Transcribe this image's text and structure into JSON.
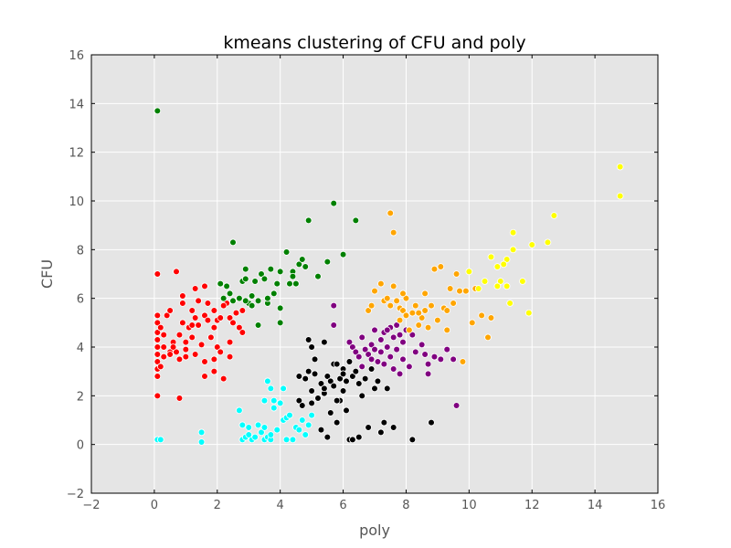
{
  "chart_data": {
    "type": "scatter",
    "title": "kmeans clustering of CFU and poly",
    "xlabel": "poly",
    "ylabel": "CFU",
    "xlim": [
      -2,
      16
    ],
    "ylim": [
      -2,
      16
    ],
    "xticks": [
      -2,
      0,
      2,
      4,
      6,
      8,
      10,
      12,
      14,
      16
    ],
    "yticks": [
      -2,
      0,
      2,
      4,
      6,
      8,
      10,
      12,
      14,
      16
    ],
    "grid": true,
    "background_color": "#e5e5e5",
    "point_edge_color": "#ffffff",
    "series": [
      {
        "color": "#ff0000",
        "points": [
          [
            0.1,
            7.0
          ],
          [
            0.7,
            7.1
          ],
          [
            0.1,
            5.3
          ],
          [
            0.1,
            5.0
          ],
          [
            0.1,
            4.6
          ],
          [
            0.1,
            4.3
          ],
          [
            0.1,
            4.0
          ],
          [
            0.1,
            3.7
          ],
          [
            0.1,
            3.4
          ],
          [
            0.1,
            3.1
          ],
          [
            0.1,
            2.8
          ],
          [
            0.1,
            2.0
          ],
          [
            0.2,
            4.8
          ],
          [
            0.3,
            4.5
          ],
          [
            0.3,
            4.0
          ],
          [
            0.3,
            3.6
          ],
          [
            0.2,
            3.2
          ],
          [
            0.4,
            5.3
          ],
          [
            0.5,
            3.8
          ],
          [
            0.6,
            4.2
          ],
          [
            0.5,
            3.7
          ],
          [
            0.7,
            3.8
          ],
          [
            0.8,
            4.5
          ],
          [
            0.8,
            3.5
          ],
          [
            0.9,
            5.8
          ],
          [
            0.9,
            6.1
          ],
          [
            0.9,
            5.0
          ],
          [
            1.0,
            4.2
          ],
          [
            1.0,
            3.9
          ],
          [
            0.8,
            1.9
          ],
          [
            1.1,
            4.8
          ],
          [
            1.2,
            5.5
          ],
          [
            1.2,
            4.4
          ],
          [
            1.3,
            6.4
          ],
          [
            1.3,
            5.2
          ],
          [
            1.3,
            3.7
          ],
          [
            1.4,
            5.9
          ],
          [
            1.4,
            4.9
          ],
          [
            1.5,
            4.1
          ],
          [
            1.6,
            6.5
          ],
          [
            1.6,
            5.3
          ],
          [
            1.6,
            3.4
          ],
          [
            1.6,
            2.8
          ],
          [
            1.7,
            5.8
          ],
          [
            1.7,
            5.1
          ],
          [
            1.8,
            4.4
          ],
          [
            1.9,
            5.5
          ],
          [
            1.9,
            4.8
          ],
          [
            1.9,
            3.5
          ],
          [
            1.9,
            3.0
          ],
          [
            2.0,
            5.1
          ],
          [
            2.0,
            4.0
          ],
          [
            2.1,
            5.2
          ],
          [
            2.1,
            3.8
          ],
          [
            2.2,
            2.7
          ],
          [
            2.3,
            5.8
          ],
          [
            2.4,
            5.2
          ],
          [
            2.4,
            4.2
          ],
          [
            2.4,
            3.6
          ],
          [
            2.5,
            5.0
          ],
          [
            2.6,
            5.4
          ],
          [
            2.7,
            4.8
          ],
          [
            2.8,
            5.5
          ],
          [
            2.8,
            4.6
          ],
          [
            1.2,
            4.9
          ],
          [
            0.5,
            5.5
          ],
          [
            0.6,
            4.0
          ],
          [
            1.0,
            3.6
          ],
          [
            2.2,
            5.7
          ]
        ]
      },
      {
        "color": "#008000",
        "points": [
          [
            0.1,
            13.7
          ],
          [
            2.5,
            8.3
          ],
          [
            2.1,
            6.6
          ],
          [
            2.3,
            6.5
          ],
          [
            2.2,
            6.0
          ],
          [
            2.4,
            6.2
          ],
          [
            2.5,
            5.9
          ],
          [
            2.7,
            6.0
          ],
          [
            2.8,
            6.7
          ],
          [
            2.9,
            7.2
          ],
          [
            2.9,
            6.8
          ],
          [
            3.0,
            5.8
          ],
          [
            3.1,
            5.7
          ],
          [
            3.2,
            6.7
          ],
          [
            3.3,
            4.9
          ],
          [
            3.3,
            5.9
          ],
          [
            3.4,
            7.0
          ],
          [
            3.5,
            6.8
          ],
          [
            3.6,
            5.8
          ],
          [
            3.7,
            7.2
          ],
          [
            3.8,
            6.2
          ],
          [
            3.9,
            6.6
          ],
          [
            4.0,
            7.1
          ],
          [
            4.0,
            5.6
          ],
          [
            4.0,
            5.0
          ],
          [
            4.2,
            7.9
          ],
          [
            4.3,
            6.6
          ],
          [
            4.4,
            7.1
          ],
          [
            4.5,
            6.6
          ],
          [
            4.6,
            7.4
          ],
          [
            4.7,
            7.6
          ],
          [
            4.8,
            7.3
          ],
          [
            4.9,
            9.2
          ],
          [
            5.2,
            6.9
          ],
          [
            5.5,
            7.5
          ],
          [
            5.7,
            9.9
          ],
          [
            6.0,
            7.8
          ],
          [
            6.4,
            9.2
          ],
          [
            2.9,
            5.9
          ],
          [
            3.1,
            6.1
          ],
          [
            3.6,
            6.0
          ],
          [
            4.4,
            6.9
          ]
        ]
      },
      {
        "color": "#00ffff",
        "points": [
          [
            0.1,
            0.2
          ],
          [
            0.2,
            0.2
          ],
          [
            1.5,
            0.5
          ],
          [
            1.5,
            0.1
          ],
          [
            2.7,
            1.4
          ],
          [
            2.8,
            0.8
          ],
          [
            2.8,
            0.2
          ],
          [
            2.9,
            0.3
          ],
          [
            3.0,
            0.7
          ],
          [
            3.1,
            0.2
          ],
          [
            3.2,
            0.3
          ],
          [
            3.3,
            0.8
          ],
          [
            3.4,
            0.5
          ],
          [
            3.5,
            0.2
          ],
          [
            3.5,
            1.8
          ],
          [
            3.6,
            0.3
          ],
          [
            3.6,
            2.6
          ],
          [
            3.7,
            2.3
          ],
          [
            3.7,
            0.2
          ],
          [
            3.8,
            1.8
          ],
          [
            3.8,
            1.5
          ],
          [
            3.9,
            0.6
          ],
          [
            4.0,
            1.7
          ],
          [
            4.1,
            1.0
          ],
          [
            4.1,
            2.3
          ],
          [
            4.2,
            1.1
          ],
          [
            4.2,
            0.2
          ],
          [
            4.3,
            1.2
          ],
          [
            4.4,
            0.2
          ],
          [
            4.5,
            0.7
          ],
          [
            4.7,
            1.0
          ],
          [
            4.8,
            0.4
          ],
          [
            4.9,
            0.8
          ],
          [
            5.0,
            1.2
          ],
          [
            3.5,
            0.7
          ],
          [
            3.0,
            0.4
          ],
          [
            3.7,
            0.4
          ],
          [
            4.6,
            0.6
          ]
        ]
      },
      {
        "color": "#000000",
        "points": [
          [
            4.6,
            2.8
          ],
          [
            4.6,
            1.8
          ],
          [
            4.7,
            1.6
          ],
          [
            4.8,
            2.7
          ],
          [
            4.9,
            3.0
          ],
          [
            4.9,
            4.3
          ],
          [
            5.0,
            4.0
          ],
          [
            5.0,
            2.2
          ],
          [
            5.0,
            1.7
          ],
          [
            5.1,
            3.5
          ],
          [
            5.2,
            1.9
          ],
          [
            5.3,
            2.5
          ],
          [
            5.3,
            0.6
          ],
          [
            5.4,
            4.2
          ],
          [
            5.4,
            2.1
          ],
          [
            5.5,
            2.8
          ],
          [
            5.5,
            0.3
          ],
          [
            5.6,
            2.6
          ],
          [
            5.6,
            1.3
          ],
          [
            5.7,
            3.3
          ],
          [
            5.7,
            2.4
          ],
          [
            5.8,
            3.3
          ],
          [
            5.8,
            0.9
          ],
          [
            5.9,
            2.7
          ],
          [
            5.9,
            1.8
          ],
          [
            6.0,
            3.1
          ],
          [
            6.0,
            2.2
          ],
          [
            6.1,
            2.6
          ],
          [
            6.1,
            1.4
          ],
          [
            6.2,
            3.4
          ],
          [
            6.2,
            0.2
          ],
          [
            6.3,
            2.8
          ],
          [
            6.3,
            0.2
          ],
          [
            6.4,
            3.0
          ],
          [
            6.5,
            2.5
          ],
          [
            6.5,
            0.3
          ],
          [
            6.6,
            3.2
          ],
          [
            6.6,
            2.0
          ],
          [
            6.7,
            2.7
          ],
          [
            6.8,
            0.7
          ],
          [
            6.9,
            3.1
          ],
          [
            7.0,
            2.3
          ],
          [
            7.1,
            2.6
          ],
          [
            7.2,
            0.5
          ],
          [
            7.3,
            0.9
          ],
          [
            7.4,
            2.3
          ],
          [
            7.6,
            0.7
          ],
          [
            8.2,
            0.2
          ],
          [
            8.8,
            0.9
          ],
          [
            5.1,
            2.9
          ],
          [
            5.8,
            1.8
          ],
          [
            6.0,
            2.9
          ],
          [
            5.4,
            2.3
          ]
        ]
      },
      {
        "color": "#800080",
        "points": [
          [
            5.7,
            5.7
          ],
          [
            5.7,
            4.9
          ],
          [
            6.2,
            4.2
          ],
          [
            6.3,
            4.0
          ],
          [
            6.4,
            3.8
          ],
          [
            6.5,
            3.6
          ],
          [
            6.6,
            4.4
          ],
          [
            6.6,
            3.2
          ],
          [
            6.7,
            3.9
          ],
          [
            6.8,
            3.7
          ],
          [
            6.9,
            4.1
          ],
          [
            6.9,
            3.5
          ],
          [
            7.0,
            4.7
          ],
          [
            7.1,
            3.4
          ],
          [
            7.2,
            4.3
          ],
          [
            7.2,
            3.8
          ],
          [
            7.3,
            4.6
          ],
          [
            7.3,
            3.3
          ],
          [
            7.4,
            4.0
          ],
          [
            7.5,
            4.8
          ],
          [
            7.5,
            3.6
          ],
          [
            7.6,
            4.4
          ],
          [
            7.6,
            3.1
          ],
          [
            7.7,
            4.9
          ],
          [
            7.7,
            3.9
          ],
          [
            7.8,
            4.5
          ],
          [
            7.8,
            2.9
          ],
          [
            7.9,
            4.2
          ],
          [
            7.9,
            3.5
          ],
          [
            8.0,
            4.7
          ],
          [
            8.1,
            3.2
          ],
          [
            8.2,
            4.5
          ],
          [
            8.3,
            3.8
          ],
          [
            8.5,
            4.1
          ],
          [
            8.6,
            3.7
          ],
          [
            8.7,
            3.3
          ],
          [
            8.9,
            3.6
          ],
          [
            9.1,
            3.5
          ],
          [
            9.3,
            3.9
          ],
          [
            9.5,
            3.5
          ],
          [
            9.6,
            1.6
          ],
          [
            8.7,
            2.9
          ],
          [
            7.4,
            4.7
          ],
          [
            7.0,
            3.9
          ]
        ]
      },
      {
        "color": "#ffa500",
        "points": [
          [
            7.5,
            9.5
          ],
          [
            7.6,
            8.7
          ],
          [
            6.8,
            5.5
          ],
          [
            6.9,
            5.7
          ],
          [
            7.0,
            6.3
          ],
          [
            7.2,
            6.6
          ],
          [
            7.3,
            5.9
          ],
          [
            7.4,
            6.0
          ],
          [
            7.5,
            5.7
          ],
          [
            7.6,
            6.5
          ],
          [
            7.7,
            5.9
          ],
          [
            7.8,
            5.1
          ],
          [
            7.8,
            5.6
          ],
          [
            7.9,
            5.5
          ],
          [
            8.0,
            6.0
          ],
          [
            8.0,
            5.3
          ],
          [
            8.1,
            4.7
          ],
          [
            8.2,
            5.4
          ],
          [
            8.3,
            5.7
          ],
          [
            8.4,
            4.9
          ],
          [
            8.5,
            5.2
          ],
          [
            8.6,
            6.2
          ],
          [
            8.6,
            5.5
          ],
          [
            8.7,
            4.8
          ],
          [
            8.8,
            5.7
          ],
          [
            8.9,
            7.2
          ],
          [
            9.0,
            5.1
          ],
          [
            9.1,
            7.3
          ],
          [
            9.2,
            5.6
          ],
          [
            9.3,
            4.7
          ],
          [
            9.4,
            6.4
          ],
          [
            9.5,
            5.8
          ],
          [
            9.6,
            7.0
          ],
          [
            9.7,
            6.3
          ],
          [
            9.8,
            3.4
          ],
          [
            9.9,
            6.3
          ],
          [
            10.1,
            5.0
          ],
          [
            10.4,
            5.3
          ],
          [
            10.6,
            4.4
          ],
          [
            10.7,
            5.2
          ],
          [
            10.2,
            6.4
          ],
          [
            7.9,
            6.2
          ],
          [
            8.4,
            5.4
          ],
          [
            9.3,
            5.5
          ]
        ]
      },
      {
        "color": "#ffff00",
        "points": [
          [
            14.8,
            11.4
          ],
          [
            14.8,
            10.2
          ],
          [
            12.7,
            9.4
          ],
          [
            12.5,
            8.3
          ],
          [
            12.0,
            8.2
          ],
          [
            11.4,
            8.7
          ],
          [
            11.4,
            8.0
          ],
          [
            11.2,
            7.6
          ],
          [
            11.1,
            7.4
          ],
          [
            10.9,
            7.3
          ],
          [
            10.7,
            7.7
          ],
          [
            11.0,
            6.7
          ],
          [
            11.2,
            6.5
          ],
          [
            11.3,
            5.8
          ],
          [
            11.7,
            6.7
          ],
          [
            11.9,
            5.4
          ],
          [
            10.5,
            6.7
          ],
          [
            10.9,
            6.5
          ],
          [
            10.0,
            7.1
          ],
          [
            10.3,
            6.4
          ]
        ]
      }
    ]
  }
}
